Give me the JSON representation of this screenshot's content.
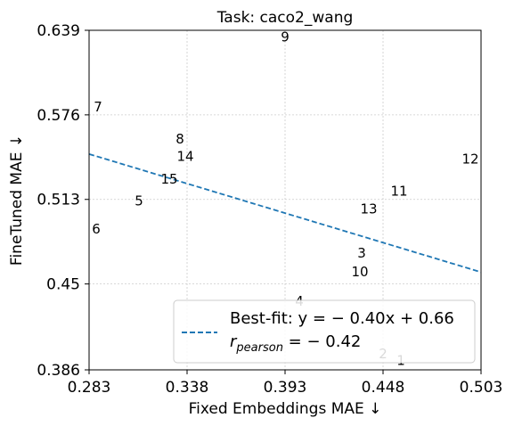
{
  "chart_data": {
    "type": "scatter",
    "title": "Task: caco2_wang",
    "xlabel": "Fixed Embeddings MAE ↓",
    "ylabel": "FineTuned MAE ↓",
    "xlim": [
      0.283,
      0.503
    ],
    "ylim": [
      0.386,
      0.639
    ],
    "xticks": [
      "0.283",
      "0.338",
      "0.393",
      "0.448",
      "0.503"
    ],
    "yticks": [
      "0.386",
      "0.45",
      "0.513",
      "0.576",
      "0.639"
    ],
    "grid": true,
    "points": [
      {
        "label": "1",
        "x": 0.458,
        "y": 0.393
      },
      {
        "label": "2",
        "x": 0.448,
        "y": 0.398
      },
      {
        "label": "3",
        "x": 0.436,
        "y": 0.473
      },
      {
        "label": "4",
        "x": 0.401,
        "y": 0.437
      },
      {
        "label": "5",
        "x": 0.311,
        "y": 0.512
      },
      {
        "label": "6",
        "x": 0.287,
        "y": 0.491
      },
      {
        "label": "7",
        "x": 0.288,
        "y": 0.582
      },
      {
        "label": "8",
        "x": 0.334,
        "y": 0.558
      },
      {
        "label": "9",
        "x": 0.393,
        "y": 0.634
      },
      {
        "label": "10",
        "x": 0.435,
        "y": 0.459
      },
      {
        "label": "11",
        "x": 0.457,
        "y": 0.519
      },
      {
        "label": "12",
        "x": 0.497,
        "y": 0.543
      },
      {
        "label": "13",
        "x": 0.44,
        "y": 0.506
      },
      {
        "label": "14",
        "x": 0.337,
        "y": 0.545
      },
      {
        "label": "15",
        "x": 0.328,
        "y": 0.528
      }
    ],
    "fit_line": {
      "slope": -0.4,
      "intercept": 0.66,
      "color": "#1f77b4",
      "style": "dashed"
    },
    "legend": {
      "placement": "lower-right",
      "fit_label": "Best-fit: y = − 0.40x + 0.66",
      "pearson_prefix": "r",
      "pearson_sub": "pearson",
      "pearson_suffix": " = − 0.42"
    }
  }
}
